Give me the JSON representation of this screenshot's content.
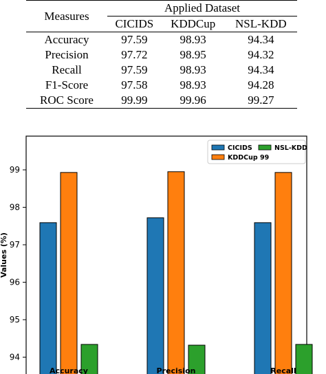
{
  "table": {
    "measures_header": "Measures",
    "group_header": "Applied Dataset",
    "columns": [
      "CICIDS",
      "KDDCup",
      "NSL-KDD"
    ],
    "rows": [
      {
        "measure": "Accuracy",
        "values": [
          "97.59",
          "98.93",
          "94.34"
        ]
      },
      {
        "measure": "Precision",
        "values": [
          "97.72",
          "98.95",
          "94.32"
        ]
      },
      {
        "measure": "Recall",
        "values": [
          "97.59",
          "98.93",
          "94.34"
        ]
      },
      {
        "measure": "F1-Score",
        "values": [
          "97.58",
          "98.93",
          "94.28"
        ]
      },
      {
        "measure": "ROC Score",
        "values": [
          "99.99",
          "99.96",
          "99.27"
        ]
      }
    ]
  },
  "chart_data": {
    "type": "bar",
    "categories": [
      "Accuracy",
      "Precision",
      "Recall"
    ],
    "series": [
      {
        "name": "CICIDS",
        "values": [
          97.59,
          97.72,
          97.59
        ],
        "color": "#1f77b4"
      },
      {
        "name": "KDDCup 99",
        "values": [
          98.93,
          98.95,
          98.93
        ],
        "color": "#ff7f0e"
      },
      {
        "name": "NSL-KDD",
        "values": [
          94.34,
          94.32,
          94.34
        ],
        "color": "#2ca02c"
      }
    ],
    "ylabel": "Values (%)",
    "yticks": [
      "94",
      "95",
      "96",
      "97",
      "98",
      "99"
    ],
    "ylim": [
      93.55,
      99.9
    ],
    "legend": "top-right",
    "grid": false
  }
}
